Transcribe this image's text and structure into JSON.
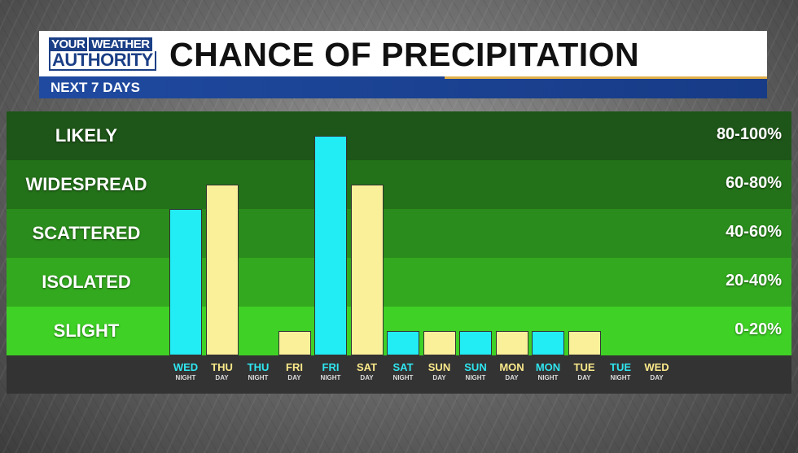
{
  "header": {
    "logo_line1_a": "YOUR",
    "logo_line1_b": "WEATHER",
    "logo_line2": "AUTHORITY",
    "title": "CHANCE OF PRECIPITATION",
    "subtitle": "NEXT 7 DAYS"
  },
  "colors": {
    "night_bar": "#22ecf4",
    "day_bar": "#fbf09a",
    "bands": [
      "#1e5518",
      "#237119",
      "#2a8c1c",
      "#33a91f",
      "#3fd126"
    ]
  },
  "chart_data": {
    "type": "bar",
    "title": "CHANCE OF PRECIPITATION",
    "subtitle": "NEXT 7 DAYS",
    "ylim": [
      0,
      100
    ],
    "bands": [
      {
        "label": "LIKELY",
        "range": "80-100%"
      },
      {
        "label": "WIDESPREAD",
        "range": "60-80%"
      },
      {
        "label": "SCATTERED",
        "range": "40-60%"
      },
      {
        "label": "ISOLATED",
        "range": "20-40%"
      },
      {
        "label": "SLIGHT",
        "range": "0-20%"
      }
    ],
    "categories": [
      {
        "day": "WED",
        "period": "NIGHT",
        "value": 60
      },
      {
        "day": "THU",
        "period": "DAY",
        "value": 70
      },
      {
        "day": "THU",
        "period": "NIGHT",
        "value": 0
      },
      {
        "day": "FRI",
        "period": "DAY",
        "value": 10
      },
      {
        "day": "FRI",
        "period": "NIGHT",
        "value": 90
      },
      {
        "day": "SAT",
        "period": "DAY",
        "value": 70
      },
      {
        "day": "SAT",
        "period": "NIGHT",
        "value": 10
      },
      {
        "day": "SUN",
        "period": "DAY",
        "value": 10
      },
      {
        "day": "SUN",
        "period": "NIGHT",
        "value": 10
      },
      {
        "day": "MON",
        "period": "DAY",
        "value": 10
      },
      {
        "day": "MON",
        "period": "NIGHT",
        "value": 10
      },
      {
        "day": "TUE",
        "period": "DAY",
        "value": 10
      },
      {
        "day": "TUE",
        "period": "NIGHT",
        "value": 0
      },
      {
        "day": "WED",
        "period": "DAY",
        "value": 0
      }
    ]
  }
}
